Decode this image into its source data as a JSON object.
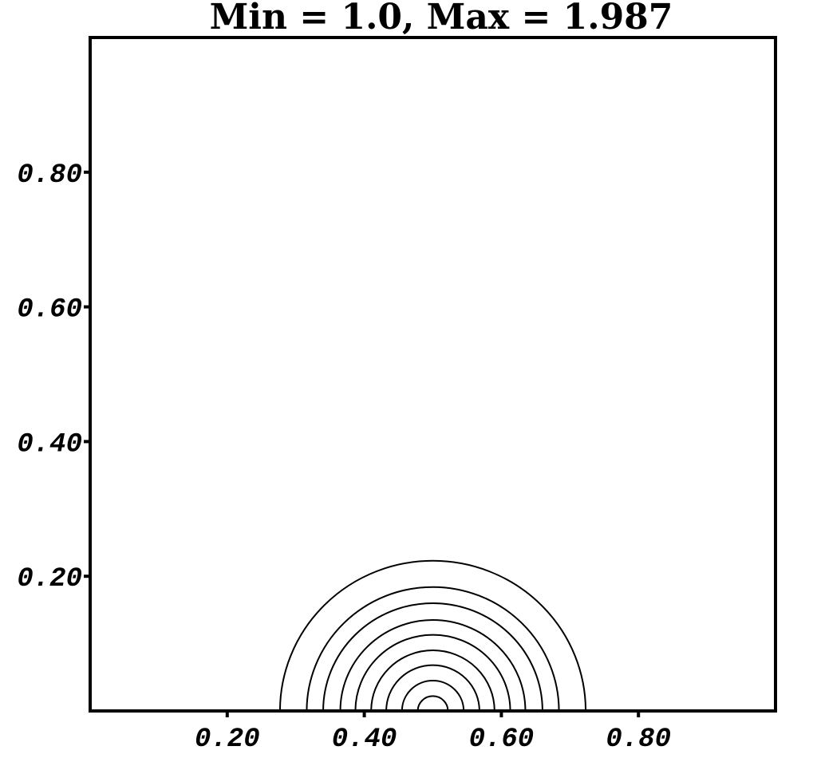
{
  "chart_data": {
    "type": "contour",
    "title": "Min = 1.0, Max = 1.987",
    "xlabel": "",
    "ylabel": "",
    "xlim": [
      0.0,
      1.0
    ],
    "ylim": [
      0.0,
      1.0
    ],
    "grid": false,
    "x_ticks": [
      {
        "value": 0.2,
        "label": "0.20"
      },
      {
        "value": 0.4,
        "label": "0.40"
      },
      {
        "value": 0.6,
        "label": "0.60"
      },
      {
        "value": 0.8,
        "label": "0.80"
      }
    ],
    "y_ticks": [
      {
        "value": 0.2,
        "label": "0.20"
      },
      {
        "value": 0.4,
        "label": "0.40"
      },
      {
        "value": 0.6,
        "label": "0.60"
      },
      {
        "value": 0.8,
        "label": "0.80"
      }
    ],
    "contour_center": {
      "x": 0.5,
      "y": 0.0
    },
    "contour_radii": [
      0.223,
      0.184,
      0.16,
      0.135,
      0.113,
      0.09,
      0.068,
      0.045,
      0.022
    ]
  }
}
